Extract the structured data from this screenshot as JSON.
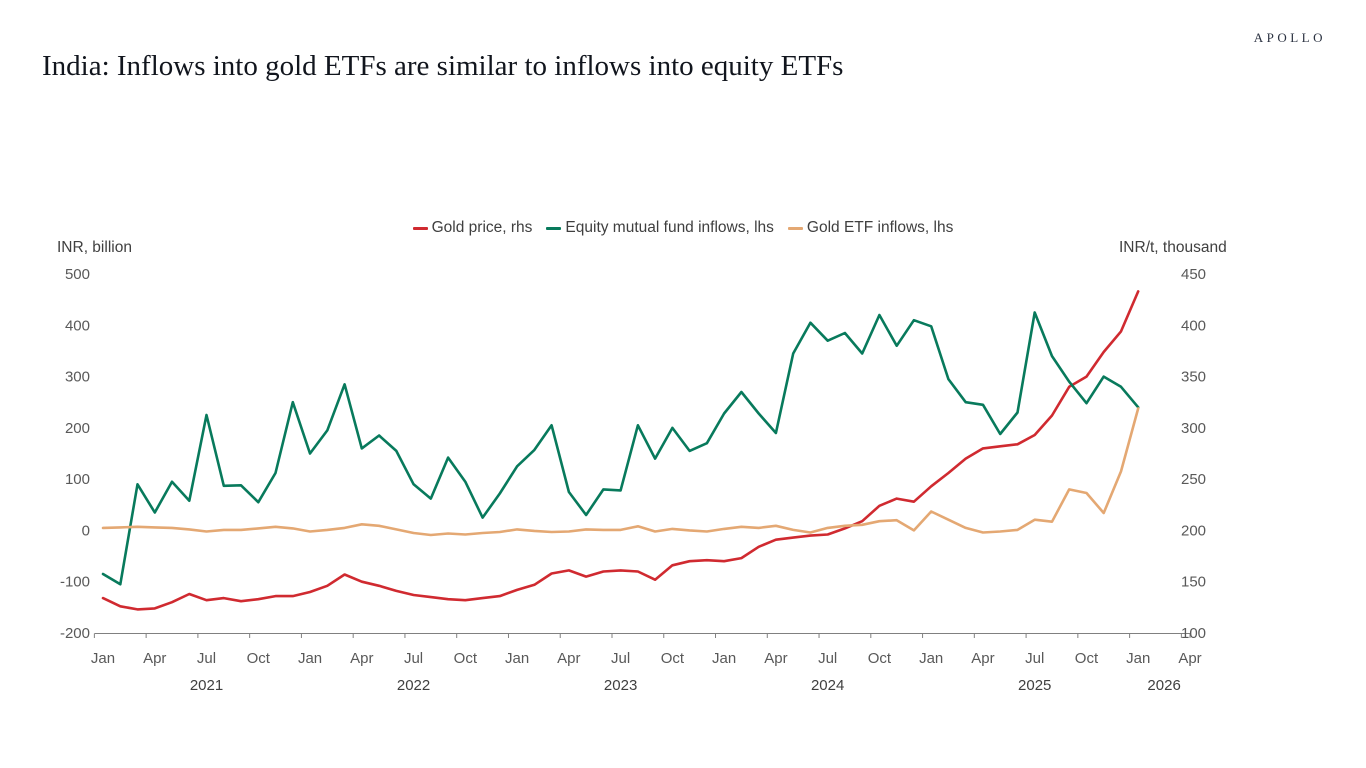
{
  "branding": {
    "logo": "APOLLO"
  },
  "title": "India: Inflows into gold ETFs are similar to inflows into equity ETFs",
  "chart_data": {
    "type": "line",
    "title": "India: Inflows into gold ETFs are similar to inflows into equity ETFs",
    "x_start": "Jan 2021",
    "x_end": "Apr 2026",
    "frequency": "monthly",
    "grid": false,
    "legend_position": "top-center",
    "left_axis": {
      "label": "INR, billion",
      "min": -200,
      "max": 500,
      "ticks": [
        500,
        400,
        300,
        200,
        100,
        0,
        -100,
        -200
      ]
    },
    "right_axis": {
      "label": "INR/t, thousand",
      "min": 100,
      "max": 450,
      "ticks": [
        450,
        400,
        350,
        300,
        250,
        200,
        150,
        100
      ]
    },
    "x_axis": {
      "quarter_labels": [
        "Jan",
        "Apr",
        "Jul",
        "Oct"
      ],
      "years": [
        {
          "label": "2021",
          "center_month_index": 6
        },
        {
          "label": "2022",
          "center_month_index": 18
        },
        {
          "label": "2023",
          "center_month_index": 30
        },
        {
          "label": "2024",
          "center_month_index": 42
        },
        {
          "label": "2025",
          "center_month_index": 54
        },
        {
          "label": "2026",
          "center_month_index": 61.5
        }
      ]
    },
    "series": [
      {
        "name": "Gold price, rhs",
        "axis": "right",
        "color": "#d02a30",
        "values": [
          134,
          126,
          123,
          124,
          130,
          138,
          132,
          134,
          131,
          133,
          136,
          136,
          140,
          146,
          157,
          150,
          146,
          141,
          137,
          135,
          133,
          132,
          134,
          136,
          142,
          147,
          158,
          161,
          155,
          160,
          161,
          160,
          152,
          166,
          170,
          171,
          170,
          173,
          184,
          191,
          193,
          195,
          196,
          202,
          209,
          224,
          231,
          228,
          243,
          256,
          270,
          280,
          282,
          284,
          293,
          312,
          340,
          350,
          374,
          394,
          433
        ]
      },
      {
        "name": "Equity mutual fund inflows, lhs",
        "axis": "left",
        "color": "#087a5c",
        "values": [
          -85,
          -105,
          90,
          35,
          95,
          58,
          225,
          87,
          88,
          55,
          112,
          250,
          150,
          195,
          285,
          160,
          185,
          155,
          90,
          62,
          142,
          95,
          25,
          72,
          125,
          157,
          205,
          75,
          30,
          80,
          78,
          205,
          140,
          200,
          155,
          170,
          228,
          270,
          228,
          190,
          345,
          405,
          370,
          385,
          345,
          420,
          360,
          410,
          398,
          295,
          250,
          245,
          188,
          230,
          425,
          340,
          290,
          248,
          300,
          280,
          240
        ]
      },
      {
        "name": "Gold ETF inflows, lhs",
        "axis": "left",
        "color": "#e4a873",
        "values": [
          5,
          6,
          7,
          6,
          5,
          2,
          -2,
          1,
          1,
          4,
          7,
          4,
          -2,
          1,
          5,
          12,
          9,
          2,
          -5,
          -9,
          -6,
          -8,
          -5,
          -3,
          2,
          -1,
          -3,
          -2,
          2,
          1,
          1,
          8,
          -2,
          3,
          0,
          -2,
          3,
          7,
          5,
          9,
          1,
          -4,
          5,
          9,
          11,
          18,
          20,
          0,
          37,
          21,
          5,
          -4,
          -2,
          1,
          21,
          17,
          80,
          73,
          34,
          115,
          238
        ]
      }
    ]
  }
}
